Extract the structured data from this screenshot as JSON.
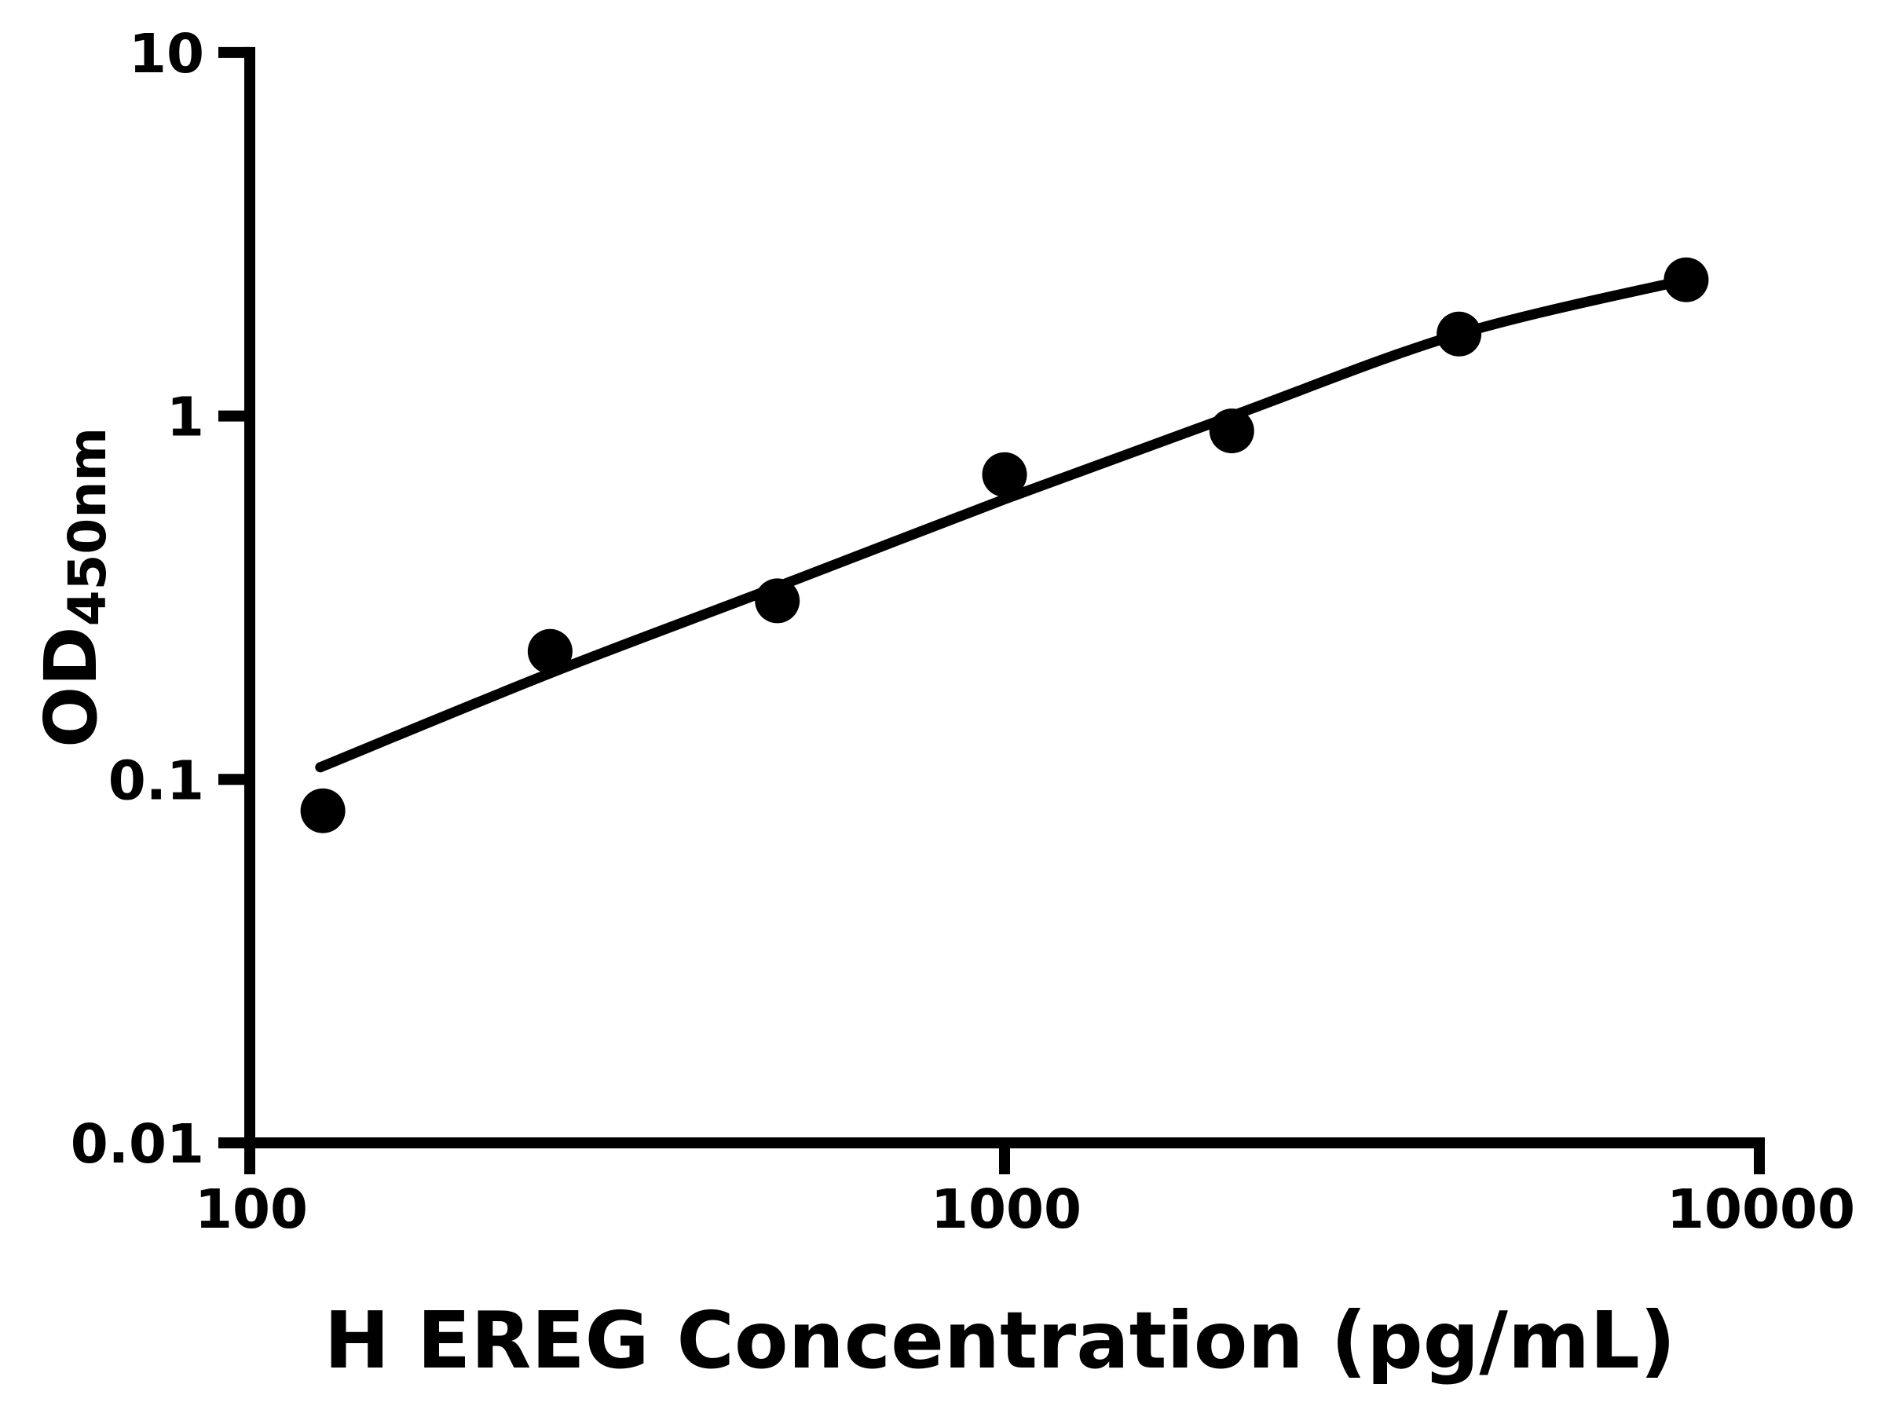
{
  "figure": {
    "background_color": "#ffffff",
    "ink_color": "#000000"
  },
  "chart_data": {
    "type": "scatter",
    "title": "",
    "xlabel": "H EREG Concentration (pg/mL)",
    "ylabel_main": "OD",
    "ylabel_sub": "450nm",
    "x_scale": "log",
    "y_scale": "log",
    "xlim": [
      100,
      10000
    ],
    "ylim": [
      0.01,
      10
    ],
    "grid": false,
    "legend": "none",
    "x_ticks": [
      {
        "value": 100,
        "label": "100"
      },
      {
        "value": 1000,
        "label": "1000"
      },
      {
        "value": 10000,
        "label": "10000"
      }
    ],
    "y_ticks": [
      {
        "value": 10,
        "label": "10"
      },
      {
        "value": 1,
        "label": "1"
      },
      {
        "value": 0.1,
        "label": "0.1"
      },
      {
        "value": 0.01,
        "label": "0.01"
      }
    ],
    "series": [
      {
        "name": "standard-points",
        "marker": "filled-circle",
        "color": "#000000",
        "points": [
          {
            "x": 125,
            "y": 0.082
          },
          {
            "x": 250,
            "y": 0.225
          },
          {
            "x": 500,
            "y": 0.31
          },
          {
            "x": 1000,
            "y": 0.69
          },
          {
            "x": 2000,
            "y": 0.91
          },
          {
            "x": 4000,
            "y": 1.68
          },
          {
            "x": 8000,
            "y": 2.37
          }
        ]
      }
    ],
    "fit_curve": {
      "name": "4pl-fit",
      "color": "#000000",
      "points": [
        {
          "x": 124,
          "y": 0.108
        },
        {
          "x": 250,
          "y": 0.196
        },
        {
          "x": 500,
          "y": 0.339
        },
        {
          "x": 1000,
          "y": 0.59
        },
        {
          "x": 2000,
          "y": 1.0
        },
        {
          "x": 4000,
          "y": 1.68
        },
        {
          "x": 8000,
          "y": 2.37
        }
      ]
    }
  }
}
